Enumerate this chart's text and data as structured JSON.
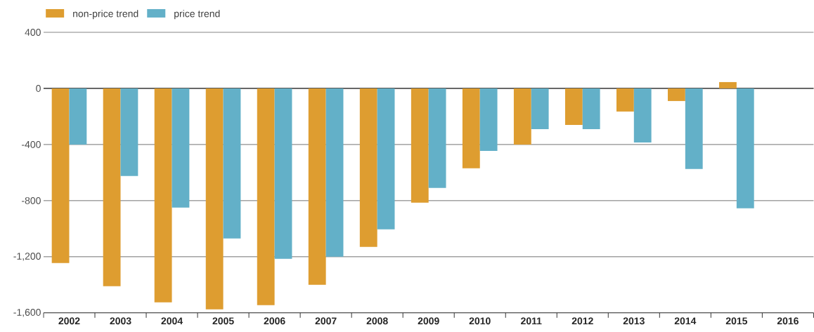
{
  "chart_data": {
    "type": "bar",
    "categories": [
      "2002",
      "2003",
      "2004",
      "2005",
      "2006",
      "2007",
      "2008",
      "2009",
      "2010",
      "2011",
      "2012",
      "2013",
      "2014",
      "2015",
      "2016"
    ],
    "series": [
      {
        "name": "non-price trend",
        "color": "#de9d30",
        "values": [
          -1245,
          -1410,
          -1525,
          -1575,
          -1545,
          -1400,
          -1130,
          -815,
          -570,
          -400,
          -260,
          -165,
          -90,
          45,
          null
        ]
      },
      {
        "name": "price trend",
        "color": "#63b0c8",
        "values": [
          -400,
          -625,
          -850,
          -1070,
          -1215,
          -1200,
          -1005,
          -710,
          -445,
          -290,
          -290,
          -385,
          -575,
          -855,
          null
        ]
      }
    ],
    "ylim": [
      -1600,
      400
    ],
    "yticks": [
      400,
      0,
      -400,
      -800,
      {
        "value": -1200,
        "label": "-1,200"
      },
      {
        "value": -1600,
        "label": "-1,600"
      }
    ],
    "grid": "y",
    "legend": "top left"
  }
}
